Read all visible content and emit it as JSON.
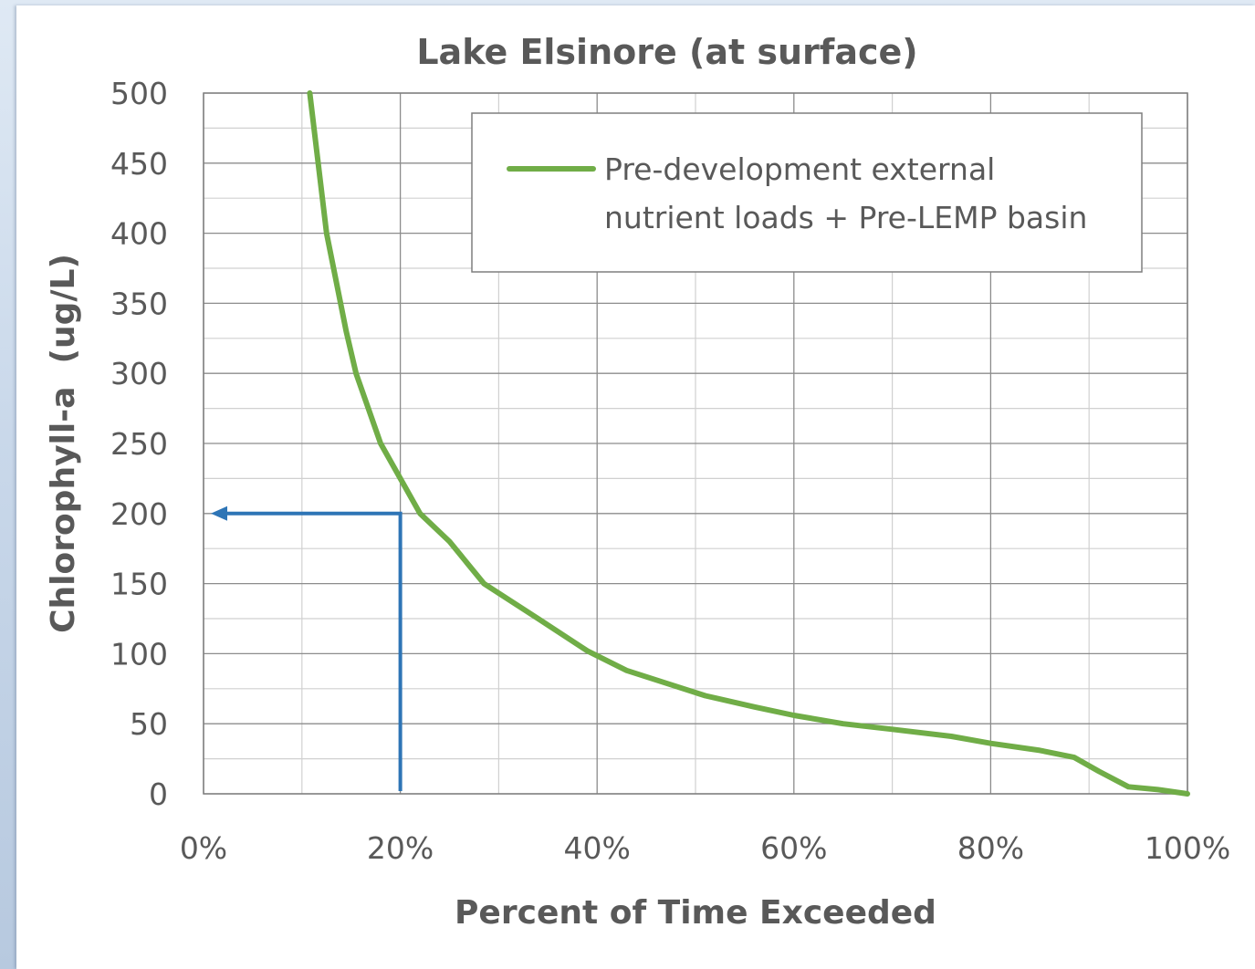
{
  "chart_data": {
    "type": "line",
    "title": "Lake Elsinore (at surface)",
    "xlabel": "Percent of Time Exceeded",
    "ylabel": "Chlorophyll-a  (ug/L)",
    "xlim": [
      0,
      100
    ],
    "ylim": [
      0,
      500
    ],
    "x_ticks": [
      "0%",
      "20%",
      "40%",
      "60%",
      "80%",
      "100%"
    ],
    "x_tick_values": [
      0,
      20,
      40,
      60,
      80,
      100
    ],
    "y_ticks": [
      "0",
      "50",
      "100",
      "150",
      "200",
      "250",
      "300",
      "350",
      "400",
      "450",
      "500"
    ],
    "y_tick_values": [
      0,
      50,
      100,
      150,
      200,
      250,
      300,
      350,
      400,
      450,
      500
    ],
    "grid": true,
    "legend_position": "top-right",
    "series": [
      {
        "name": "Pre-development external nutrient loads + Pre-LEMP basin",
        "legend_lines": [
          "Pre-development external",
          "nutrient loads + Pre-LEMP basin"
        ],
        "color": "#70ad47",
        "x": [
          10.8,
          12.5,
          14.5,
          15.5,
          18,
          20,
          22,
          25,
          28.5,
          34,
          39,
          43,
          47,
          51,
          56,
          60,
          65,
          70,
          76,
          80,
          85,
          88.5,
          91,
          94,
          97,
          100
        ],
        "y": [
          500,
          400,
          330,
          300,
          250,
          225,
          200,
          180,
          150,
          125,
          102,
          88,
          79,
          70,
          62,
          56,
          50,
          46,
          41,
          36,
          31,
          26,
          16,
          5,
          3,
          0
        ]
      }
    ],
    "annotation": {
      "color": "#2e75b6",
      "from": {
        "x": 20,
        "y": 0
      },
      "corner": {
        "x": 20,
        "y": 200
      },
      "to": {
        "x": 0,
        "y": 200
      }
    }
  }
}
